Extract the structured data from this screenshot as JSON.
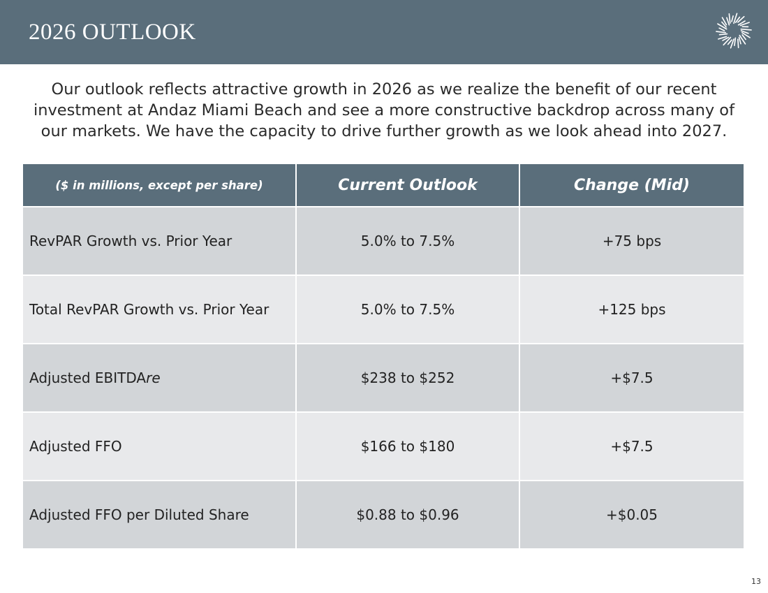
{
  "header": {
    "title": "2026 OUTLOOK",
    "logo_icon": "sunburst-logo-icon",
    "background_color": "#5a6e7b"
  },
  "intro": "Our outlook reflects attractive growth in 2026 as we realize the benefit of our recent investment at Andaz Miami Beach and see a more constructive backdrop across many of our markets. We have the capacity to drive further growth as we look ahead into 2027.",
  "table": {
    "columns": [
      "($ in millions, except per share)",
      "Current Outlook",
      "Change (Mid)"
    ],
    "rows": [
      {
        "metric": "RevPAR Growth vs. Prior Year",
        "current": "5.0% to 7.5%",
        "change": "+75 bps"
      },
      {
        "metric": "Total RevPAR Growth vs. Prior Year",
        "current": "5.0% to 7.5%",
        "change": "+125 bps"
      },
      {
        "metric": "Adjusted EBITDA",
        "metric_suffix": "re",
        "current": "$238 to $252",
        "change": "+$7.5"
      },
      {
        "metric": "Adjusted FFO",
        "current": "$166 to $180",
        "change": "+$7.5"
      },
      {
        "metric": "Adjusted FFO per Diluted Share",
        "current": "$0.88 to $0.96",
        "change": "+$0.05"
      }
    ],
    "row_colors": [
      "#d2d5d8",
      "#e8e9eb"
    ]
  },
  "page_number": "13"
}
